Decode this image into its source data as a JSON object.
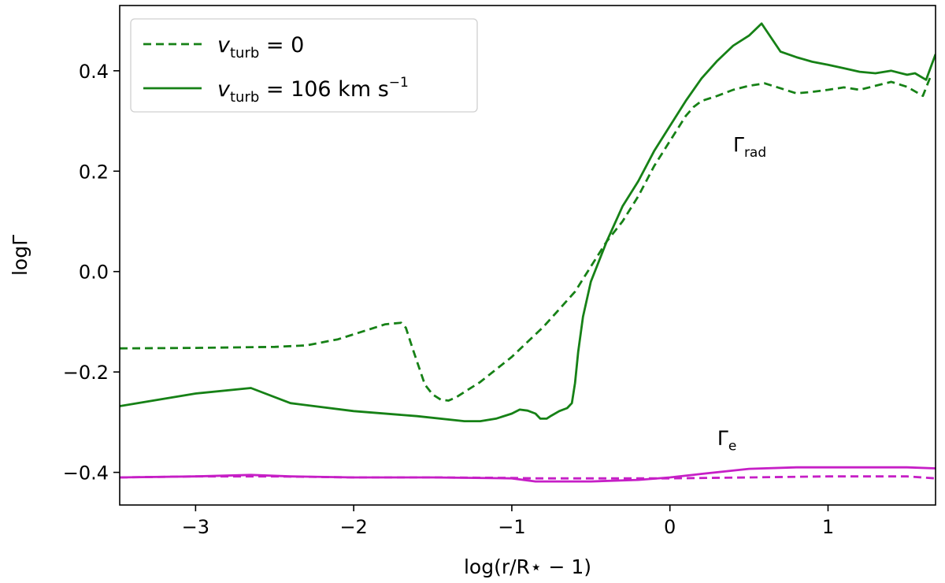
{
  "chart_data": {
    "type": "line",
    "xlabel": "log(r/R⋆ − 1)",
    "ylabel": "logΓ",
    "xlim": [
      -3.48,
      1.68
    ],
    "ylim": [
      -0.465,
      0.53
    ],
    "xticks": [
      -3,
      -2,
      -1,
      0,
      1
    ],
    "xtick_labels": [
      "−3",
      "−2",
      "−1",
      "0",
      "1"
    ],
    "yticks": [
      -0.4,
      -0.2,
      0.0,
      0.2,
      0.4
    ],
    "ytick_labels": [
      "−0.4",
      "−0.2",
      "0.0",
      "0.2",
      "0.4"
    ],
    "grid": false,
    "legend": {
      "position": "top-left",
      "entries": [
        {
          "series_ref": "rad_v0",
          "line": "dashed",
          "main": "v",
          "sub": "turb",
          "rest": " = 0",
          "sup": ""
        },
        {
          "series_ref": "rad_v106",
          "line": "solid",
          "main": "v",
          "sub": "turb",
          "rest": " = 106 km s",
          "sup": "−1"
        }
      ]
    },
    "annotations": [
      {
        "main": "Γ",
        "sub": "rad",
        "x": 0.4,
        "y": 0.24
      },
      {
        "main": "Γ",
        "sub": "e",
        "x": 0.3,
        "y": -0.345
      }
    ],
    "series": [
      {
        "id": "rad_v0",
        "color": "#168116",
        "dash": "dashed",
        "x": [
          -3.48,
          -3.0,
          -2.5,
          -2.3,
          -2.1,
          -1.9,
          -1.8,
          -1.7,
          -1.67,
          -1.62,
          -1.55,
          -1.5,
          -1.45,
          -1.4,
          -1.35,
          -1.3,
          -1.2,
          -1.1,
          -1.0,
          -0.9,
          -0.8,
          -0.7,
          -0.6,
          -0.5,
          -0.4,
          -0.3,
          -0.2,
          -0.1,
          0.0,
          0.1,
          0.15,
          0.2,
          0.3,
          0.4,
          0.5,
          0.6,
          0.7,
          0.8,
          0.9,
          1.0,
          1.1,
          1.2,
          1.3,
          1.4,
          1.5,
          1.6,
          1.65
        ],
        "y": [
          -0.153,
          -0.152,
          -0.15,
          -0.147,
          -0.135,
          -0.115,
          -0.105,
          -0.102,
          -0.112,
          -0.16,
          -0.225,
          -0.245,
          -0.255,
          -0.257,
          -0.25,
          -0.24,
          -0.22,
          -0.195,
          -0.17,
          -0.14,
          -0.11,
          -0.075,
          -0.04,
          0.01,
          0.06,
          0.1,
          0.15,
          0.21,
          0.26,
          0.31,
          0.328,
          0.34,
          0.35,
          0.362,
          0.37,
          0.375,
          0.365,
          0.355,
          0.358,
          0.362,
          0.367,
          0.362,
          0.37,
          0.378,
          0.368,
          0.35,
          0.39
        ]
      },
      {
        "id": "rad_v106",
        "color": "#168116",
        "dash": "solid",
        "x": [
          -3.48,
          -3.0,
          -2.65,
          -2.4,
          -2.0,
          -1.6,
          -1.3,
          -1.2,
          -1.1,
          -1.0,
          -0.95,
          -0.9,
          -0.85,
          -0.82,
          -0.78,
          -0.75,
          -0.7,
          -0.65,
          -0.62,
          -0.6,
          -0.58,
          -0.55,
          -0.5,
          -0.4,
          -0.3,
          -0.2,
          -0.1,
          0.0,
          0.1,
          0.2,
          0.3,
          0.4,
          0.5,
          0.58,
          0.7,
          0.8,
          0.9,
          1.0,
          1.1,
          1.2,
          1.3,
          1.4,
          1.5,
          1.55,
          1.62,
          1.68
        ],
        "y": [
          -0.268,
          -0.243,
          -0.232,
          -0.262,
          -0.278,
          -0.288,
          -0.298,
          -0.298,
          -0.293,
          -0.283,
          -0.275,
          -0.277,
          -0.283,
          -0.293,
          -0.293,
          -0.287,
          -0.278,
          -0.272,
          -0.262,
          -0.222,
          -0.16,
          -0.09,
          -0.02,
          0.06,
          0.13,
          0.18,
          0.24,
          0.29,
          0.34,
          0.385,
          0.42,
          0.45,
          0.47,
          0.494,
          0.438,
          0.427,
          0.418,
          0.412,
          0.405,
          0.398,
          0.395,
          0.4,
          0.392,
          0.395,
          0.382,
          0.433
        ]
      },
      {
        "id": "e_v0",
        "color": "#c61fc6",
        "dash": "dashed",
        "x": [
          -3.48,
          -3.0,
          -2.5,
          -2.0,
          -1.5,
          -1.0,
          -0.85,
          -0.5,
          0.0,
          0.5,
          1.0,
          1.5,
          1.68
        ],
        "y": [
          -0.41,
          -0.408,
          -0.408,
          -0.41,
          -0.41,
          -0.411,
          -0.412,
          -0.412,
          -0.412,
          -0.41,
          -0.408,
          -0.408,
          -0.412
        ]
      },
      {
        "id": "e_v106",
        "color": "#c61fc6",
        "dash": "solid",
        "x": [
          -3.48,
          -3.0,
          -2.65,
          -2.4,
          -2.0,
          -1.5,
          -1.0,
          -0.85,
          -0.5,
          -0.2,
          0.0,
          0.2,
          0.5,
          0.8,
          1.0,
          1.3,
          1.5,
          1.68
        ],
        "y": [
          -0.41,
          -0.408,
          -0.405,
          -0.408,
          -0.41,
          -0.41,
          -0.412,
          -0.418,
          -0.418,
          -0.415,
          -0.41,
          -0.403,
          -0.393,
          -0.39,
          -0.39,
          -0.39,
          -0.39,
          -0.392
        ]
      }
    ]
  }
}
